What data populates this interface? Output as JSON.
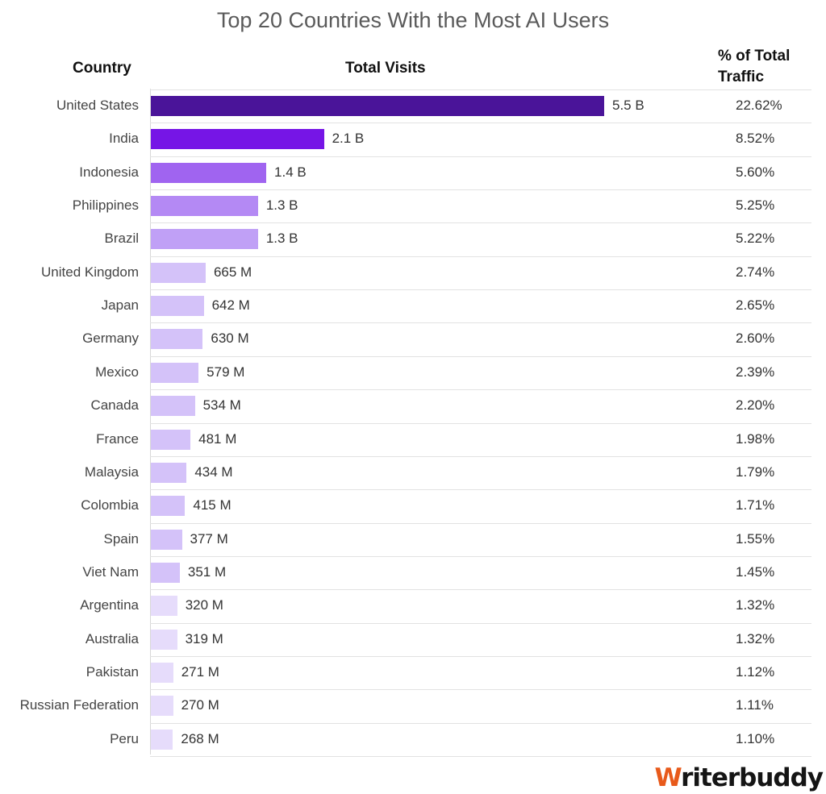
{
  "chart_data": {
    "type": "bar",
    "orientation": "horizontal",
    "title": "Top 20 Countries With the Most AI Users",
    "columns": {
      "country": "Country",
      "visits": "Total Visits",
      "pct_line1": "% of Total",
      "pct_line2": "Traffic"
    },
    "rows": [
      {
        "country": "United States",
        "value": 5500000000,
        "label": "5.5 B",
        "pct": "22.62%",
        "color": "#4a1499"
      },
      {
        "country": "India",
        "value": 2100000000,
        "label": "2.1 B",
        "pct": "8.52%",
        "color": "#7615e6"
      },
      {
        "country": "Indonesia",
        "value": 1400000000,
        "label": "1.4 B",
        "pct": "5.60%",
        "color": "#a064f0"
      },
      {
        "country": "Philippines",
        "value": 1300000000,
        "label": "1.3 B",
        "pct": "5.25%",
        "color": "#b489f4"
      },
      {
        "country": "Brazil",
        "value": 1300000000,
        "label": "1.3 B",
        "pct": "5.22%",
        "color": "#c0a0f6"
      },
      {
        "country": "United Kingdom",
        "value": 665000000,
        "label": "665 M",
        "pct": "2.74%",
        "color": "#d4c2f9"
      },
      {
        "country": "Japan",
        "value": 642000000,
        "label": "642 M",
        "pct": "2.65%",
        "color": "#d4c2f9"
      },
      {
        "country": "Germany",
        "value": 630000000,
        "label": "630 M",
        "pct": "2.60%",
        "color": "#d4c2f9"
      },
      {
        "country": "Mexico",
        "value": 579000000,
        "label": "579 M",
        "pct": "2.39%",
        "color": "#d4c2f9"
      },
      {
        "country": "Canada",
        "value": 534000000,
        "label": "534 M",
        "pct": "2.20%",
        "color": "#d4c2f9"
      },
      {
        "country": "France",
        "value": 481000000,
        "label": "481 M",
        "pct": "1.98%",
        "color": "#d4c2f9"
      },
      {
        "country": "Malaysia",
        "value": 434000000,
        "label": "434 M",
        "pct": "1.79%",
        "color": "#d4c2f9"
      },
      {
        "country": "Colombia",
        "value": 415000000,
        "label": "415 M",
        "pct": "1.71%",
        "color": "#d4c2f9"
      },
      {
        "country": "Spain",
        "value": 377000000,
        "label": "377 M",
        "pct": "1.55%",
        "color": "#d4c2f9"
      },
      {
        "country": "Viet Nam",
        "value": 351000000,
        "label": "351 M",
        "pct": "1.45%",
        "color": "#d4c2f9"
      },
      {
        "country": "Argentina",
        "value": 320000000,
        "label": "320 M",
        "pct": "1.32%",
        "color": "#e6dcfb"
      },
      {
        "country": "Australia",
        "value": 319000000,
        "label": "319 M",
        "pct": "1.32%",
        "color": "#e6dcfb"
      },
      {
        "country": "Pakistan",
        "value": 271000000,
        "label": "271 M",
        "pct": "1.12%",
        "color": "#e6dcfb"
      },
      {
        "country": "Russian Federation",
        "value": 270000000,
        "label": "270 M",
        "pct": "1.11%",
        "color": "#e6dcfb"
      },
      {
        "country": "Peru",
        "value": 268000000,
        "label": "268 M",
        "pct": "1.10%",
        "color": "#e6dcfb"
      }
    ]
  },
  "branding": {
    "logo_initial": "W",
    "logo_rest": "riterbuddy",
    "initial_color": "#e85a1b"
  }
}
